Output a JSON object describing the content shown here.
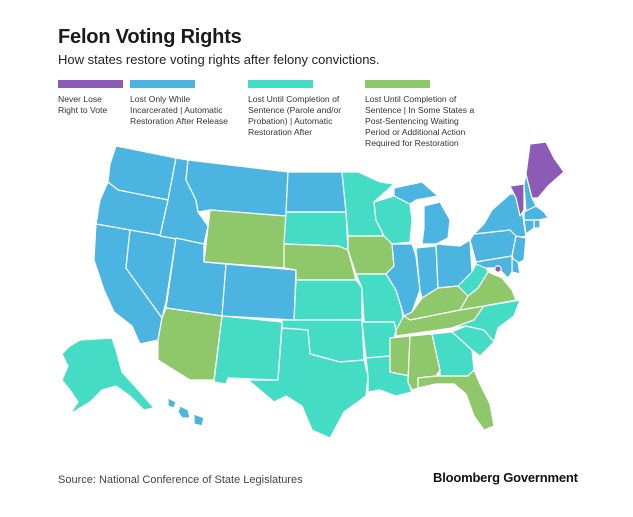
{
  "header": {
    "title": "Felon Voting Rights",
    "subtitle": "How states restore voting rights after felony convictions."
  },
  "legend": [
    {
      "key": "never",
      "label": "Never Lose Right to Vote",
      "color": "#8c5bb5"
    },
    {
      "key": "incarcerated",
      "label": "Lost Only While Incarcerated | Automatic Restoration After Release",
      "color": "#4bb4e0"
    },
    {
      "key": "sentence",
      "label": "Lost Until Completion of Sentence (Parole and/or Probation) | Automatic Restoration After",
      "color": "#45dcc5"
    },
    {
      "key": "additional",
      "label": "Lost Until Completion of Sentence | In Some States a Post-Sentencing Waiting Period or Additional Action Required for Restoration",
      "color": "#8fc76b"
    }
  ],
  "colors": {
    "never": "#8c5bb5",
    "incarcerated": "#4bb4e0",
    "sentence": "#45dcc5",
    "additional": "#8fc76b"
  },
  "states": {
    "WA": "incarcerated",
    "OR": "incarcerated",
    "CA": "incarcerated",
    "NV": "incarcerated",
    "ID": "incarcerated",
    "MT": "incarcerated",
    "UT": "incarcerated",
    "CO": "incarcerated",
    "ND": "incarcerated",
    "IL": "incarcerated",
    "IN": "incarcerated",
    "OH": "incarcerated",
    "MI": "incarcerated",
    "PA": "incarcerated",
    "NY": "incarcerated",
    "NJ": "incarcerated",
    "MA": "incarcerated",
    "NH": "incarcerated",
    "RI": "incarcerated",
    "CT": "incarcerated",
    "MD": "incarcerated",
    "DE": "incarcerated",
    "HI": "incarcerated",
    "WY": "additional",
    "AZ": "additional",
    "NE": "additional",
    "IA": "additional",
    "KY": "additional",
    "TN": "additional",
    "VA": "additional",
    "MS": "additional",
    "AL": "additional",
    "FL": "additional",
    "SD": "sentence",
    "MN": "sentence",
    "WI": "sentence",
    "KS": "sentence",
    "OK": "sentence",
    "TX": "sentence",
    "NM": "sentence",
    "MO": "sentence",
    "AR": "sentence",
    "LA": "sentence",
    "GA": "sentence",
    "SC": "sentence",
    "NC": "sentence",
    "WV": "sentence",
    "AK": "sentence",
    "ME": "never",
    "VT": "never",
    "DC": "never"
  },
  "footer": {
    "source": "Source: National Conference of State Legislatures",
    "brand": "Bloomberg Government"
  }
}
